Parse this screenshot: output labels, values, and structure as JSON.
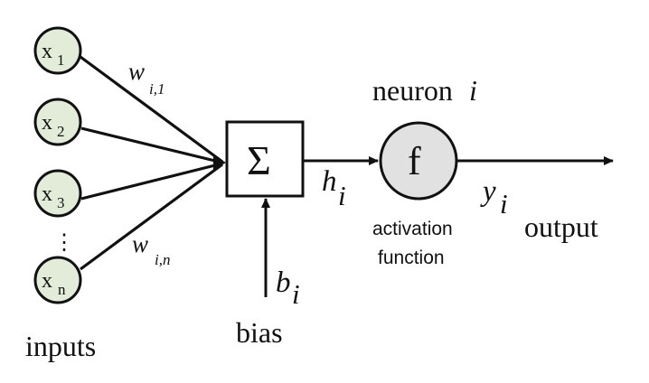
{
  "diagram": {
    "inputs_label": "inputs",
    "input_nodes": [
      {
        "main": "x",
        "sub": "1"
      },
      {
        "main": "x",
        "sub": "2"
      },
      {
        "main": "x",
        "sub": "3"
      },
      {
        "main": "x",
        "sub": "n"
      }
    ],
    "ellipsis": "⋮",
    "weights": {
      "first": {
        "main": "w",
        "sub": "i,1"
      },
      "last": {
        "main": "w",
        "sub": "i,n"
      }
    },
    "summation_symbol": "Σ",
    "bias": {
      "label": "bias",
      "symbol_main": "b",
      "symbol_sub": "i"
    },
    "hidden_value": {
      "main": "h",
      "sub": "i"
    },
    "neuron": {
      "title_prefix": "neuron",
      "title_index": "i",
      "function_symbol": "f",
      "function_label_line1": "activation",
      "function_label_line2": "function",
      "fill_color": "#e1e1e1"
    },
    "output": {
      "symbol_main": "y",
      "symbol_sub": "i",
      "label": "output"
    },
    "input_node_fill": "#e3ecd9"
  }
}
